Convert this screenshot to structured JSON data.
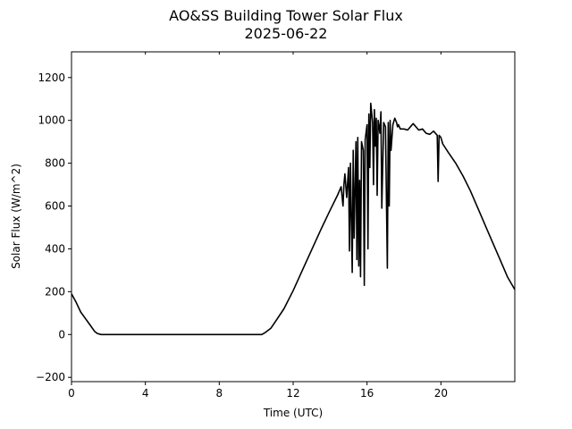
{
  "chart_data": {
    "type": "line",
    "title": "AO&SS Building Tower Solar Flux",
    "subtitle": "2025-06-22",
    "xlabel": "Time (UTC)",
    "ylabel": "Solar Flux (W/m^2)",
    "xlim": [
      0,
      24
    ],
    "ylim": [
      -220,
      1320
    ],
    "x_ticks": [
      0,
      4,
      8,
      12,
      16,
      20
    ],
    "y_ticks": [
      -200,
      0,
      200,
      400,
      600,
      800,
      1000,
      1200
    ],
    "line_color": "#000000",
    "grid": false,
    "legend": "none",
    "series": [
      {
        "x": [
          0,
          0.25,
          0.5,
          0.75,
          1.0,
          1.25,
          1.4,
          1.6,
          1.8,
          2.0,
          3,
          4,
          5,
          6,
          7,
          8,
          9,
          10,
          10.3,
          10.5,
          10.8,
          11.0,
          11.5,
          12.0,
          12.5,
          13.0,
          13.5,
          14.0,
          14.4,
          14.6,
          14.7,
          14.75,
          14.8,
          14.9,
          15.0,
          15.05,
          15.1,
          15.2,
          15.25,
          15.3,
          15.4,
          15.45,
          15.5,
          15.55,
          15.6,
          15.65,
          15.7,
          15.8,
          15.85,
          15.9,
          16.0,
          16.05,
          16.1,
          16.15,
          16.2,
          16.3,
          16.35,
          16.4,
          16.45,
          16.5,
          16.55,
          16.6,
          16.7,
          16.75,
          16.8,
          16.9,
          17.0,
          17.1,
          17.15,
          17.2,
          17.25,
          17.3,
          17.4,
          17.5,
          17.6,
          17.65,
          17.7,
          17.8,
          17.9,
          18.0,
          18.2,
          18.5,
          18.8,
          19.0,
          19.2,
          19.4,
          19.6,
          19.8,
          19.85,
          19.9,
          20.0,
          20.1,
          20.4,
          20.8,
          21.2,
          21.6,
          22.0,
          22.4,
          22.8,
          23.2,
          23.6,
          24.0
        ],
        "y": [
          190,
          150,
          105,
          75,
          45,
          15,
          5,
          0,
          0,
          0,
          0,
          0,
          0,
          0,
          0,
          0,
          0,
          0,
          0,
          10,
          30,
          55,
          120,
          205,
          300,
          395,
          490,
          580,
          650,
          690,
          600,
          700,
          750,
          640,
          780,
          390,
          800,
          290,
          860,
          450,
          900,
          350,
          920,
          320,
          720,
          270,
          900,
          860,
          230,
          910,
          980,
          400,
          1030,
          780,
          1080,
          990,
          700,
          1050,
          880,
          1010,
          650,
          1000,
          940,
          1040,
          590,
          990,
          970,
          310,
          990,
          600,
          1000,
          860,
          980,
          1010,
          990,
          970,
          980,
          960,
          960,
          960,
          955,
          985,
          955,
          960,
          940,
          935,
          950,
          930,
          715,
          930,
          920,
          890,
          850,
          800,
          740,
          670,
          590,
          510,
          430,
          350,
          270,
          210
        ]
      }
    ]
  }
}
